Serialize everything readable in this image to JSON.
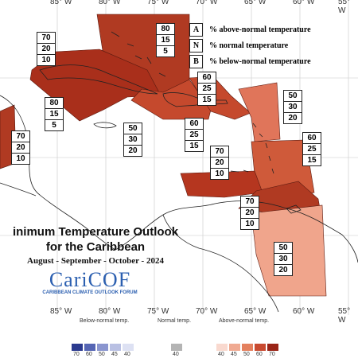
{
  "map": {
    "title_line1": "inimum Temperature Outlook",
    "title_line2": "for the Caribbean",
    "period": "August - September - October - 2024",
    "longitudes": [
      "85° W",
      "80° W",
      "75° W",
      "70° W",
      "65° W",
      "60° W",
      "55° W"
    ],
    "logo_text": "CariCOF",
    "logo_subtext": "CARIBBEAN CLIMATE OUTLOOK FORUM"
  },
  "key": {
    "a_letter": "A",
    "a_text": "% above-normal temperature",
    "n_letter": "N",
    "n_text": "% normal temperature",
    "b_letter": "B",
    "b_text": "% below-normal temperature"
  },
  "probabilities": {
    "cuba": [
      "70",
      "20",
      "10"
    ],
    "bahamas": [
      "80",
      "15",
      "5"
    ],
    "jamaica": [
      "80",
      "15",
      "5"
    ],
    "hispaniola": [
      "60",
      "25",
      "15"
    ],
    "puerto_rico": [
      "60",
      "25",
      "15"
    ],
    "leeward": [
      "50",
      "30",
      "20"
    ],
    "western_caribbean": [
      "50",
      "30",
      "20"
    ],
    "windward": [
      "60",
      "25",
      "15"
    ],
    "central_america": [
      "70",
      "20",
      "10"
    ],
    "abc_islands": [
      "70",
      "20",
      "10"
    ],
    "trinidad": [
      "70",
      "20",
      "10"
    ],
    "guianas": [
      "50",
      "30",
      "20"
    ]
  },
  "scale": {
    "below_label": "Below-normal temp.",
    "normal_label": "Normal temp.",
    "above_label": "Above-normal temp.",
    "below_ticks": [
      "70",
      "60",
      "50",
      "45",
      "40"
    ],
    "normal_ticks": [
      "40"
    ],
    "above_ticks": [
      "40",
      "45",
      "50",
      "60",
      "70"
    ],
    "colors": {
      "below": [
        "#2b3a8f",
        "#5565b4",
        "#8a95cf",
        "#b9c0e3",
        "#dde1f3"
      ],
      "normal": "#b4b4b4",
      "above": [
        "#f9d9cf",
        "#f0aa92",
        "#e4805e",
        "#c94a30",
        "#9a2417"
      ]
    }
  }
}
